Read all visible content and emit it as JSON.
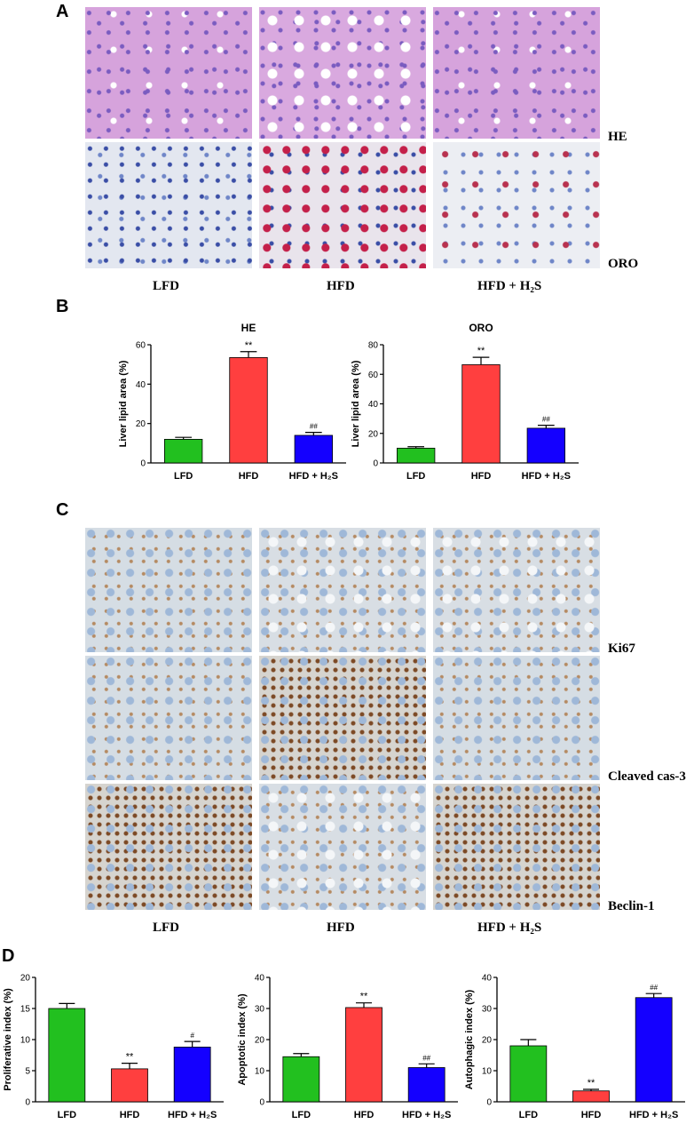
{
  "panels": {
    "A": {
      "letter": "A",
      "row_labels": [
        "HE",
        "ORO"
      ],
      "col_labels": [
        "LFD",
        "HFD",
        "HFD + H₂S"
      ]
    },
    "B": {
      "letter": "B"
    },
    "C": {
      "letter": "C",
      "row_labels": [
        "Ki67",
        "Cleaved cas-3",
        "Beclin-1"
      ],
      "col_labels": [
        "LFD",
        "HFD",
        "HFD + H₂S"
      ]
    },
    "D": {
      "letter": "D"
    }
  },
  "colors": {
    "LFD": "#22c01f",
    "HFD": "#ff3f3f",
    "HFD + H2S": "#1400ff"
  },
  "chart_data": [
    {
      "id": "B-HE",
      "type": "bar",
      "title": "HE",
      "ylabel": "Liver lipid area (%)",
      "categories": [
        "LFD",
        "HFD",
        "HFD + H₂S"
      ],
      "values": [
        12,
        53.5,
        14
      ],
      "errors": [
        1,
        3,
        1.5
      ],
      "annotations": [
        "",
        "**",
        "##"
      ],
      "ylim": [
        0,
        60
      ],
      "yticks": [
        0,
        20,
        40,
        60
      ]
    },
    {
      "id": "B-ORO",
      "type": "bar",
      "title": "ORO",
      "ylabel": "Liver lipid area (%)",
      "categories": [
        "LFD",
        "HFD",
        "HFD + H₂S"
      ],
      "values": [
        10,
        66.5,
        23.5
      ],
      "errors": [
        1,
        5,
        2
      ],
      "annotations": [
        "",
        "**",
        "##"
      ],
      "ylim": [
        0,
        80
      ],
      "yticks": [
        0,
        20,
        40,
        60,
        80
      ]
    },
    {
      "id": "D-Prolif",
      "type": "bar",
      "title": "",
      "ylabel": "Proliferative index (%)",
      "categories": [
        "LFD",
        "HFD",
        "HFD + H₂S"
      ],
      "values": [
        15,
        5.3,
        8.8
      ],
      "errors": [
        0.8,
        0.9,
        0.9
      ],
      "annotations": [
        "",
        "**",
        "#"
      ],
      "ylim": [
        0,
        20
      ],
      "yticks": [
        0,
        5,
        10,
        15,
        20
      ]
    },
    {
      "id": "D-Apop",
      "type": "bar",
      "title": "",
      "ylabel": "Apoptotic index (%)",
      "categories": [
        "LFD",
        "HFD",
        "HFD + H₂S"
      ],
      "values": [
        14.5,
        30.3,
        11
      ],
      "errors": [
        1,
        1.5,
        1.2
      ],
      "annotations": [
        "",
        "**",
        "##"
      ],
      "ylim": [
        0,
        40
      ],
      "yticks": [
        0,
        10,
        20,
        30,
        40
      ]
    },
    {
      "id": "D-Auto",
      "type": "bar",
      "title": "",
      "ylabel": "Autophagic index (%)",
      "categories": [
        "LFD",
        "HFD",
        "HFD + H₂S"
      ],
      "values": [
        18,
        3.5,
        33.5
      ],
      "errors": [
        2,
        0.5,
        1.3
      ],
      "annotations": [
        "",
        "**",
        "##"
      ],
      "ylim": [
        0,
        40
      ],
      "yticks": [
        0,
        10,
        20,
        30,
        40
      ]
    }
  ]
}
